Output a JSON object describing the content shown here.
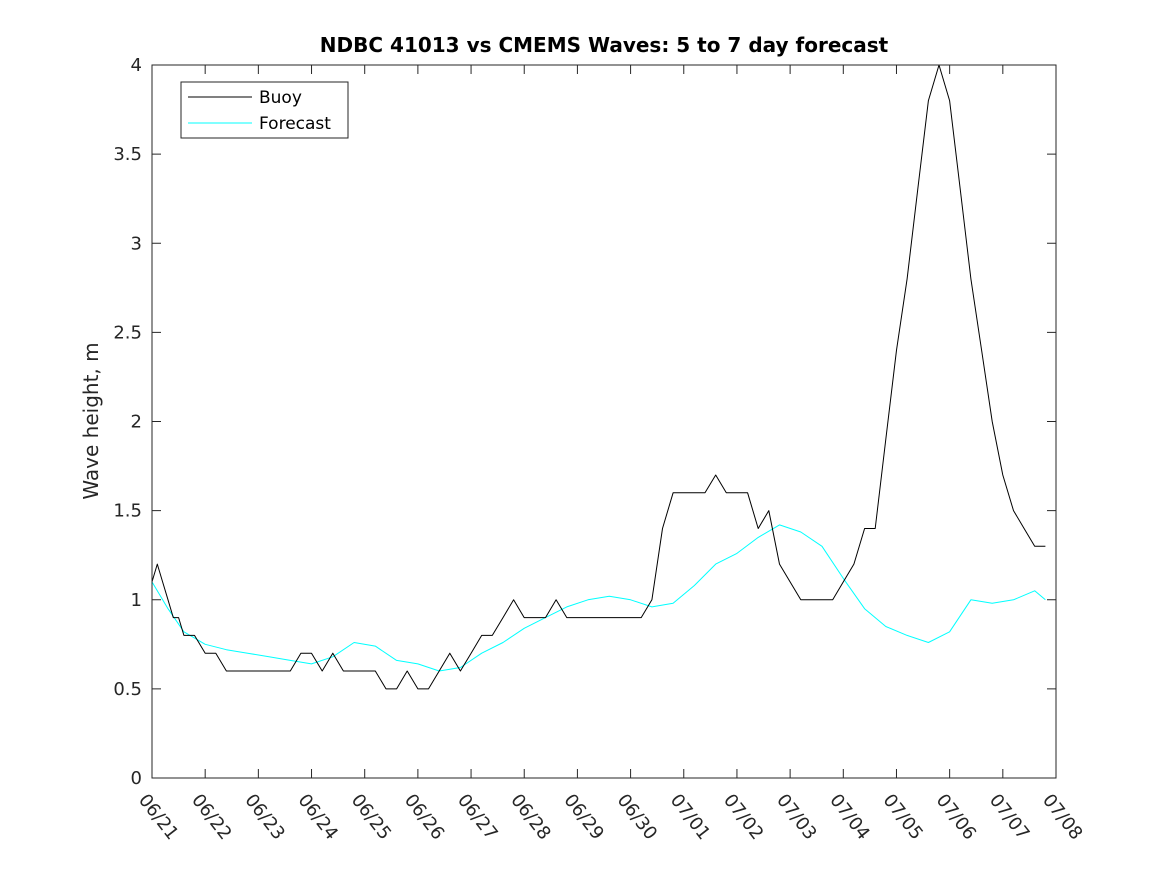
{
  "chart_data": {
    "type": "line",
    "title": "NDBC 41013 vs CMEMS Waves: 5 to 7 day forecast",
    "xlabel": "",
    "ylabel": "Wave height, m",
    "ylim": [
      0,
      4
    ],
    "yticks": [
      "0",
      "0.5",
      "1",
      "1.5",
      "2",
      "2.5",
      "3",
      "3.5",
      "4"
    ],
    "xticks": [
      "06/21",
      "06/22",
      "06/23",
      "06/24",
      "06/25",
      "06/26",
      "06/27",
      "06/28",
      "06/29",
      "06/30",
      "07/01",
      "07/02",
      "07/03",
      "07/04",
      "07/05",
      "07/06",
      "07/07",
      "07/08"
    ],
    "grid": false,
    "legend_position": "top-left",
    "legend": [
      {
        "label": "Buoy",
        "color": "#000000"
      },
      {
        "label": "Forecast",
        "color": "#00ffff"
      }
    ],
    "series": [
      {
        "name": "Buoy",
        "color": "#000000",
        "x": [
          0.0,
          0.1,
          0.2,
          0.3,
          0.4,
          0.5,
          0.6,
          0.8,
          1.0,
          1.2,
          1.4,
          1.6,
          1.8,
          2.0,
          2.2,
          2.4,
          2.6,
          2.8,
          3.0,
          3.2,
          3.4,
          3.6,
          3.8,
          4.0,
          4.2,
          4.4,
          4.6,
          4.8,
          5.0,
          5.2,
          5.4,
          5.6,
          5.8,
          6.0,
          6.2,
          6.4,
          6.6,
          6.8,
          7.0,
          7.2,
          7.4,
          7.6,
          7.8,
          8.0,
          8.2,
          8.4,
          8.6,
          8.8,
          9.0,
          9.2,
          9.4,
          9.6,
          9.8,
          10.0,
          10.2,
          10.4,
          10.6,
          10.8,
          11.0,
          11.2,
          11.4,
          11.6,
          11.8,
          12.0,
          12.2,
          12.4,
          12.6,
          12.8,
          13.0,
          13.2,
          13.4,
          13.6,
          13.8,
          14.0,
          14.2,
          14.4,
          14.6,
          14.8,
          15.0,
          15.2,
          15.4,
          15.6,
          15.8,
          16.0,
          16.2,
          16.4,
          16.6,
          16.8
        ],
        "y": [
          1.1,
          1.2,
          1.1,
          1.0,
          0.9,
          0.9,
          0.8,
          0.8,
          0.7,
          0.7,
          0.6,
          0.6,
          0.6,
          0.6,
          0.6,
          0.6,
          0.6,
          0.7,
          0.7,
          0.6,
          0.7,
          0.6,
          0.6,
          0.6,
          0.6,
          0.5,
          0.5,
          0.6,
          0.5,
          0.5,
          0.6,
          0.7,
          0.6,
          0.7,
          0.8,
          0.8,
          0.9,
          1.0,
          0.9,
          0.9,
          0.9,
          1.0,
          0.9,
          0.9,
          0.9,
          0.9,
          0.9,
          0.9,
          0.9,
          0.9,
          1.0,
          1.4,
          1.6,
          1.6,
          1.6,
          1.6,
          1.7,
          1.6,
          1.6,
          1.6,
          1.4,
          1.5,
          1.2,
          1.1,
          1.0,
          1.0,
          1.0,
          1.0,
          1.1,
          1.2,
          1.4,
          1.4,
          1.9,
          2.4,
          2.8,
          3.3,
          3.8,
          4.0,
          3.8,
          3.3,
          2.8,
          2.4,
          2.0,
          1.7,
          1.5,
          1.4,
          1.3,
          1.3
        ]
      },
      {
        "name": "Forecast",
        "color": "#00ffff",
        "x": [
          0.0,
          0.3,
          0.6,
          1.0,
          1.4,
          1.8,
          2.2,
          2.6,
          3.0,
          3.4,
          3.8,
          4.2,
          4.6,
          5.0,
          5.4,
          5.8,
          6.2,
          6.6,
          7.0,
          7.4,
          7.8,
          8.2,
          8.6,
          9.0,
          9.4,
          9.8,
          10.2,
          10.6,
          11.0,
          11.4,
          11.8,
          12.2,
          12.6,
          13.0,
          13.4,
          13.8,
          14.2,
          14.6,
          15.0,
          15.4,
          15.8,
          16.2,
          16.6,
          16.8
        ],
        "y": [
          1.1,
          0.95,
          0.82,
          0.75,
          0.72,
          0.7,
          0.68,
          0.66,
          0.64,
          0.68,
          0.76,
          0.74,
          0.66,
          0.64,
          0.6,
          0.62,
          0.7,
          0.76,
          0.84,
          0.9,
          0.96,
          1.0,
          1.02,
          1.0,
          0.96,
          0.98,
          1.08,
          1.2,
          1.26,
          1.35,
          1.42,
          1.38,
          1.3,
          1.12,
          0.95,
          0.85,
          0.8,
          0.76,
          0.82,
          1.0,
          0.98,
          1.0,
          1.05,
          1.0
        ]
      }
    ]
  }
}
